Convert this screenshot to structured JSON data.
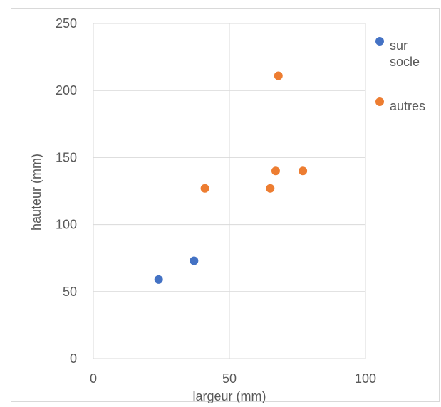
{
  "chart_data": {
    "type": "scatter",
    "title": "",
    "xlabel": "largeur (mm)",
    "ylabel": "hauteur (mm)",
    "xlim": [
      0,
      100
    ],
    "ylim": [
      0,
      250
    ],
    "xticks": [
      0,
      50,
      100
    ],
    "yticks": [
      0,
      50,
      100,
      150,
      200,
      250
    ],
    "grid": true,
    "legend_position": "right",
    "series": [
      {
        "name": "sur socle",
        "color": "#4472C4",
        "points": [
          {
            "x": 24,
            "y": 59
          },
          {
            "x": 37,
            "y": 73
          }
        ]
      },
      {
        "name": "autres",
        "color": "#ED7D31",
        "points": [
          {
            "x": 41,
            "y": 127
          },
          {
            "x": 65,
            "y": 127
          },
          {
            "x": 67,
            "y": 140
          },
          {
            "x": 68,
            "y": 211
          },
          {
            "x": 77,
            "y": 140
          }
        ]
      }
    ]
  }
}
